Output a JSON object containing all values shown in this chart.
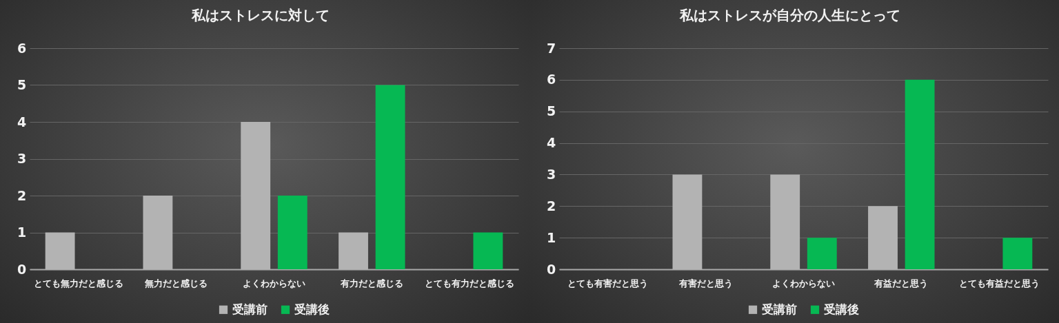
{
  "chart_data": [
    {
      "type": "bar",
      "title": "私はストレスに対して",
      "categories": [
        "とても無力だと感じる",
        "無力だと感じる",
        "よくわからない",
        "有力だと感じる",
        "とても有力だと感じる"
      ],
      "series": [
        {
          "name": "受講前",
          "color": "#b3b3b3",
          "values": [
            1,
            2,
            4,
            1,
            0
          ]
        },
        {
          "name": "受講後",
          "color": "#06b853",
          "values": [
            0,
            0,
            2,
            5,
            1
          ]
        }
      ],
      "ylim": [
        0,
        6
      ],
      "yticks": [
        0,
        1,
        2,
        3,
        4,
        5,
        6
      ],
      "grid": "y",
      "legend": "bottom"
    },
    {
      "type": "bar",
      "title": "私はストレスが自分の人生にとって",
      "categories": [
        "とても有害だと思う",
        "有害だと思う",
        "よくわからない",
        "有益だと思う",
        "とても有益だと思う"
      ],
      "series": [
        {
          "name": "受講前",
          "color": "#b3b3b3",
          "values": [
            0,
            3,
            3,
            2,
            0
          ]
        },
        {
          "name": "受講後",
          "color": "#06b853",
          "values": [
            0,
            0,
            1,
            6,
            1
          ]
        }
      ],
      "ylim": [
        0,
        7
      ],
      "yticks": [
        0,
        1,
        2,
        3,
        4,
        5,
        6,
        7
      ],
      "grid": "y",
      "legend": "bottom"
    }
  ]
}
